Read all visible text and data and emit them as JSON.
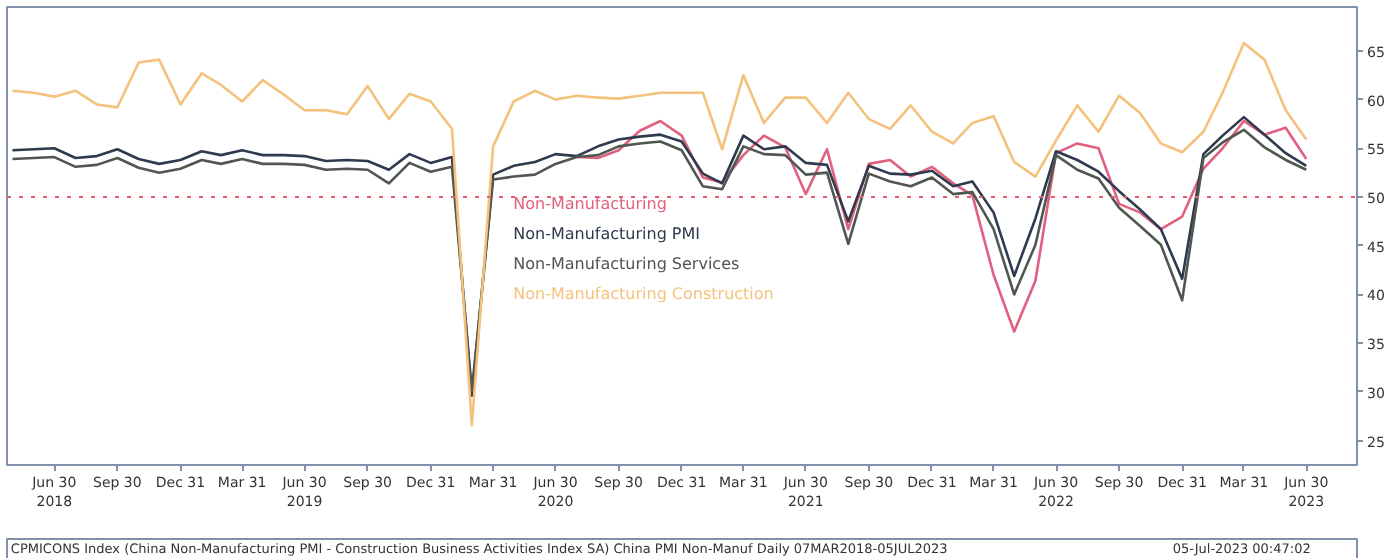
{
  "chart_data": {
    "type": "line",
    "x": [
      "2018-04-30",
      "2018-05-31",
      "2018-06-30",
      "2018-07-31",
      "2018-08-31",
      "2018-09-30",
      "2018-10-31",
      "2018-11-30",
      "2018-12-31",
      "2019-01-31",
      "2019-02-28",
      "2019-03-31",
      "2019-04-30",
      "2019-05-31",
      "2019-06-30",
      "2019-07-31",
      "2019-08-31",
      "2019-09-30",
      "2019-10-31",
      "2019-11-30",
      "2019-12-31",
      "2020-01-31",
      "2020-02-29",
      "2020-03-31",
      "2020-04-30",
      "2020-05-31",
      "2020-06-30",
      "2020-07-31",
      "2020-08-31",
      "2020-09-30",
      "2020-10-31",
      "2020-11-30",
      "2020-12-31",
      "2021-01-31",
      "2021-02-28",
      "2021-03-31",
      "2021-04-30",
      "2021-05-31",
      "2021-06-30",
      "2021-07-31",
      "2021-08-31",
      "2021-09-30",
      "2021-10-31",
      "2021-11-30",
      "2021-12-31",
      "2022-01-31",
      "2022-02-28",
      "2022-03-31",
      "2022-04-30",
      "2022-05-31",
      "2022-06-30",
      "2022-07-31",
      "2022-08-31",
      "2022-09-30",
      "2022-10-31",
      "2022-11-30",
      "2022-12-31",
      "2023-01-31",
      "2023-02-28",
      "2023-03-31",
      "2023-04-30",
      "2023-05-31",
      "2023-06-30"
    ],
    "series": [
      {
        "name": "Non-Manufacturing",
        "color": "#e2607f",
        "values": [
          null,
          null,
          null,
          null,
          null,
          null,
          null,
          null,
          null,
          null,
          null,
          null,
          null,
          null,
          null,
          null,
          null,
          null,
          null,
          null,
          null,
          null,
          null,
          null,
          null,
          null,
          null,
          54.1,
          54.0,
          54.8,
          56.8,
          57.8,
          56.3,
          52.0,
          51.5,
          54.3,
          56.3,
          55.1,
          50.3,
          54.9,
          46.7,
          53.4,
          53.8,
          52.1,
          53.1,
          51.4,
          50.2,
          42.0,
          36.2,
          41.4,
          54.5,
          55.5,
          55.0,
          49.3,
          48.4,
          46.7,
          48.0,
          52.9,
          55.0,
          57.8,
          56.4,
          57.1,
          53.9
        ]
      },
      {
        "name": "Non-Manufacturing PMI",
        "color": "#2e3a4e",
        "values": [
          54.8,
          54.9,
          55.0,
          54.0,
          54.2,
          54.9,
          53.9,
          53.4,
          53.8,
          54.7,
          54.3,
          54.8,
          54.3,
          54.3,
          54.2,
          53.7,
          53.8,
          53.7,
          52.8,
          54.4,
          53.5,
          54.1,
          29.6,
          52.3,
          53.2,
          53.6,
          54.4,
          54.2,
          55.2,
          55.9,
          56.2,
          56.4,
          55.7,
          52.4,
          51.4,
          56.3,
          54.9,
          55.2,
          53.5,
          53.3,
          47.5,
          53.2,
          52.4,
          52.3,
          52.7,
          51.1,
          51.6,
          48.4,
          41.9,
          47.8,
          54.7,
          53.8,
          52.6,
          50.6,
          48.7,
          46.7,
          41.6,
          54.4,
          56.3,
          58.2,
          56.4,
          54.5,
          53.2
        ]
      },
      {
        "name": "Non-Manufacturing Services",
        "color": "#4f5750",
        "values": [
          53.9,
          54.0,
          54.1,
          53.1,
          53.3,
          54.0,
          53.0,
          52.5,
          52.9,
          53.8,
          53.4,
          53.9,
          53.4,
          53.4,
          53.3,
          52.8,
          52.9,
          52.8,
          51.4,
          53.5,
          52.6,
          53.1,
          30.1,
          51.8,
          52.1,
          52.3,
          53.4,
          54.1,
          54.3,
          55.2,
          55.5,
          55.7,
          54.8,
          51.1,
          50.8,
          55.2,
          54.4,
          54.3,
          52.3,
          52.5,
          45.2,
          52.4,
          51.6,
          51.1,
          52.0,
          50.3,
          50.5,
          46.7,
          40.0,
          45.1,
          54.3,
          52.8,
          51.9,
          48.9,
          47.0,
          45.1,
          39.4,
          54.0,
          55.6,
          56.9,
          55.1,
          53.8,
          52.8
        ]
      },
      {
        "name": "Non-Manufacturing Construction",
        "color": "#f4c27c",
        "values": [
          60.9,
          60.7,
          60.3,
          60.9,
          59.5,
          59.2,
          63.8,
          64.1,
          59.5,
          62.7,
          61.5,
          59.8,
          62.0,
          60.5,
          58.9,
          58.9,
          58.5,
          61.4,
          58.0,
          60.6,
          59.8,
          57.0,
          26.6,
          55.2,
          59.8,
          60.9,
          60.0,
          60.4,
          60.2,
          60.1,
          60.4,
          60.7,
          60.7,
          60.7,
          54.9,
          62.5,
          57.6,
          60.2,
          60.2,
          57.6,
          60.7,
          58.0,
          57.0,
          59.4,
          56.7,
          55.5,
          57.6,
          58.3,
          53.6,
          52.1,
          55.8,
          59.4,
          56.7,
          60.4,
          58.6,
          55.5,
          54.6,
          56.7,
          60.7,
          65.8,
          64.1,
          58.9,
          55.9
        ]
      }
    ],
    "xlim": [
      "2018-04-22",
      "2023-09-12"
    ],
    "xticks": [
      {
        "value": "2018-06-30",
        "label": "Jun 30\n2018"
      },
      {
        "value": "2018-09-30",
        "label": "Sep 30"
      },
      {
        "value": "2018-12-31",
        "label": "Dec 31"
      },
      {
        "value": "2019-03-31",
        "label": "Mar 31"
      },
      {
        "value": "2019-06-30",
        "label": "Jun 30\n2019"
      },
      {
        "value": "2019-09-30",
        "label": "Sep 30"
      },
      {
        "value": "2019-12-31",
        "label": "Dec 31"
      },
      {
        "value": "2020-03-31",
        "label": "Mar 31"
      },
      {
        "value": "2020-06-30",
        "label": "Jun 30\n2020"
      },
      {
        "value": "2020-09-30",
        "label": "Sep 30"
      },
      {
        "value": "2020-12-31",
        "label": "Dec 31"
      },
      {
        "value": "2021-03-31",
        "label": "Mar 31"
      },
      {
        "value": "2021-06-30",
        "label": "Jun 30\n2021"
      },
      {
        "value": "2021-09-30",
        "label": "Sep 30"
      },
      {
        "value": "2021-12-31",
        "label": "Dec 31"
      },
      {
        "value": "2022-03-31",
        "label": "Mar 31"
      },
      {
        "value": "2022-06-30",
        "label": "Jun 30\n2022"
      },
      {
        "value": "2022-09-30",
        "label": "Sep 30"
      },
      {
        "value": "2022-12-31",
        "label": "Dec 31"
      },
      {
        "value": "2023-03-31",
        "label": "Mar 31"
      },
      {
        "value": "2023-06-30",
        "label": "Jun 30\n2023"
      }
    ],
    "ylim": [
      22.5,
      69.5
    ],
    "yticks": [
      25,
      30,
      35,
      40,
      45,
      50,
      55,
      60,
      65
    ],
    "ref_lines": [
      {
        "axis": "y",
        "value": 50,
        "color": "#e06070",
        "line_style": "dotted"
      }
    ],
    "grid": false,
    "legend": "center",
    "annotations": [
      "CPMICONS Index (China Non-Manufacturing PMI - Construction Business Activities Index SA) China PMI Non-Manuf  Daily 07MAR2018-05JUL2023",
      "05-Jul-2023 00:47:02"
    ]
  }
}
